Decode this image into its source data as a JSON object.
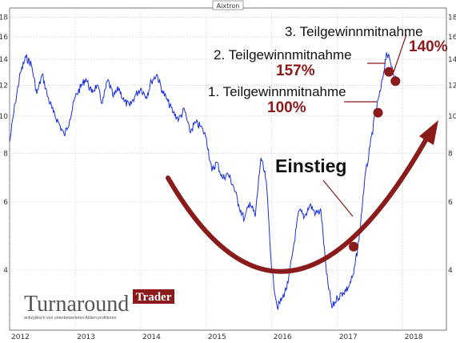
{
  "chart_data": {
    "type": "line",
    "title": "Aixtron",
    "xlabel": "",
    "ylabel": "",
    "y_scale": "log",
    "ylim": [
      2.8,
      19
    ],
    "xlim": [
      "2012-01-01",
      "2018-08-31"
    ],
    "grid": true,
    "x_ticks": [
      "2012",
      "2013",
      "2014",
      "2015",
      "2016",
      "2017",
      "2018"
    ],
    "y_ticks": [
      "4",
      "6",
      "8",
      "10",
      "12",
      "14",
      "16",
      "18"
    ],
    "colors": {
      "series": "#1a2fe0",
      "accent": "#8b1a1a",
      "grid": "#b5b5b5"
    },
    "series": [
      {
        "values": [
          [
            "2012-01-02",
            8.6
          ],
          [
            "2012-02-01",
            10.8
          ],
          [
            "2012-03-01",
            12.9
          ],
          [
            "2012-04-01",
            14.2
          ],
          [
            "2012-05-01",
            13.6
          ],
          [
            "2012-06-01",
            11.4
          ],
          [
            "2012-07-01",
            12.8
          ],
          [
            "2012-08-01",
            11.2
          ],
          [
            "2012-09-01",
            10.2
          ],
          [
            "2012-10-01",
            9.6
          ],
          [
            "2012-11-01",
            8.9
          ],
          [
            "2012-12-01",
            9.8
          ],
          [
            "2013-01-01",
            11.2
          ],
          [
            "2013-02-01",
            11.9
          ],
          [
            "2013-03-01",
            12.5
          ],
          [
            "2013-04-01",
            11.5
          ],
          [
            "2013-05-01",
            12.0
          ],
          [
            "2013-06-01",
            10.8
          ],
          [
            "2013-07-01",
            12.4
          ],
          [
            "2013-08-01",
            11.2
          ],
          [
            "2013-09-01",
            11.8
          ],
          [
            "2013-10-01",
            10.9
          ],
          [
            "2013-11-01",
            10.6
          ],
          [
            "2013-12-01",
            11.3
          ],
          [
            "2014-01-01",
            11.8
          ],
          [
            "2014-02-01",
            11.2
          ],
          [
            "2014-03-01",
            12.3
          ],
          [
            "2014-04-01",
            12.8
          ],
          [
            "2014-05-01",
            11.6
          ],
          [
            "2014-06-01",
            10.9
          ],
          [
            "2014-07-01",
            10.2
          ],
          [
            "2014-08-01",
            9.8
          ],
          [
            "2014-09-01",
            10.4
          ],
          [
            "2014-10-01",
            9.1
          ],
          [
            "2014-11-01",
            9.6
          ],
          [
            "2014-12-01",
            9.4
          ],
          [
            "2015-01-01",
            8.8
          ],
          [
            "2015-02-01",
            7.2
          ],
          [
            "2015-03-01",
            7.6
          ],
          [
            "2015-04-01",
            6.9
          ],
          [
            "2015-05-01",
            7.1
          ],
          [
            "2015-06-01",
            6.6
          ],
          [
            "2015-07-01",
            5.9
          ],
          [
            "2015-08-01",
            5.4
          ],
          [
            "2015-09-01",
            6.0
          ],
          [
            "2015-10-01",
            5.5
          ],
          [
            "2015-11-01",
            7.8
          ],
          [
            "2015-12-01",
            6.8
          ],
          [
            "2016-01-01",
            4.0
          ],
          [
            "2016-02-01",
            3.2
          ],
          [
            "2016-03-01",
            3.4
          ],
          [
            "2016-04-01",
            3.7
          ],
          [
            "2016-05-01",
            4.6
          ],
          [
            "2016-06-01",
            5.7
          ],
          [
            "2016-07-01",
            5.5
          ],
          [
            "2016-08-01",
            5.9
          ],
          [
            "2016-09-01",
            5.6
          ],
          [
            "2016-10-01",
            5.7
          ],
          [
            "2016-11-01",
            3.9
          ],
          [
            "2016-12-01",
            3.2
          ],
          [
            "2017-01-01",
            3.4
          ],
          [
            "2017-02-01",
            3.5
          ],
          [
            "2017-03-01",
            3.6
          ],
          [
            "2017-04-01",
            3.9
          ],
          [
            "2017-05-01",
            4.8
          ],
          [
            "2017-06-01",
            6.8
          ],
          [
            "2017-07-01",
            8.3
          ],
          [
            "2017-08-01",
            10.2
          ],
          [
            "2017-09-01",
            11.8
          ],
          [
            "2017-10-01",
            14.6
          ],
          [
            "2017-11-01",
            13.4
          ],
          [
            "2017-12-01",
            12.0
          ]
        ]
      }
    ],
    "annotations": [
      {
        "text": "Einstieg",
        "date": "2017-04-01",
        "value": 4.6
      },
      {
        "text": "1. Teilgewinnmitnahme",
        "percent": "100%",
        "date": "2017-08-15",
        "value": 10.2
      },
      {
        "text": "2. Teilgewinnmitnahme",
        "percent": "157%",
        "date": "2017-10-15",
        "value": 13.0
      },
      {
        "text": "3. Teilgewinnmitnahme",
        "percent": "140%",
        "date": "2017-11-20",
        "value": 12.3
      }
    ]
  },
  "logo": {
    "brand": "Turnaround",
    "badge": "Trader",
    "tagline": "antizyklisch von unterbewerteten Aktien profitieren"
  }
}
